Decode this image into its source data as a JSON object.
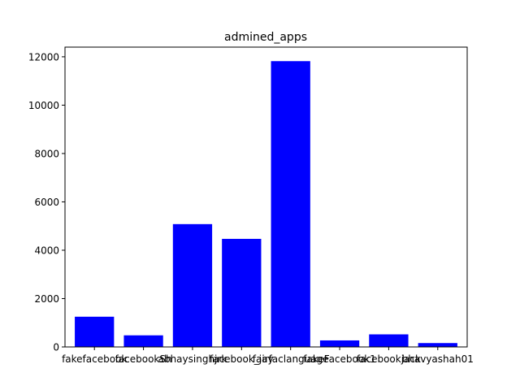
{
  "chart_data": {
    "type": "bar",
    "title": "admined_apps",
    "xlabel": "",
    "ylabel": "",
    "categories": [
      "fakefacebook",
      "facebookSh",
      "abhaysinghjrk",
      "facebook_jay",
      "fairfaclanguage",
      "fakeFacebook1",
      "facebookjack",
      "bhavyashah01"
    ],
    "values": [
      1250,
      480,
      5080,
      4470,
      11820,
      270,
      520,
      160
    ],
    "ylim": [
      0,
      12400
    ],
    "yticks": [
      0,
      2000,
      4000,
      6000,
      8000,
      10000,
      12000
    ],
    "ytick_labels": [
      "0",
      "2000",
      "4000",
      "6000",
      "8000",
      "10000",
      "12000"
    ],
    "bar_color": "#0000ff",
    "grid": false,
    "legend": "none"
  }
}
